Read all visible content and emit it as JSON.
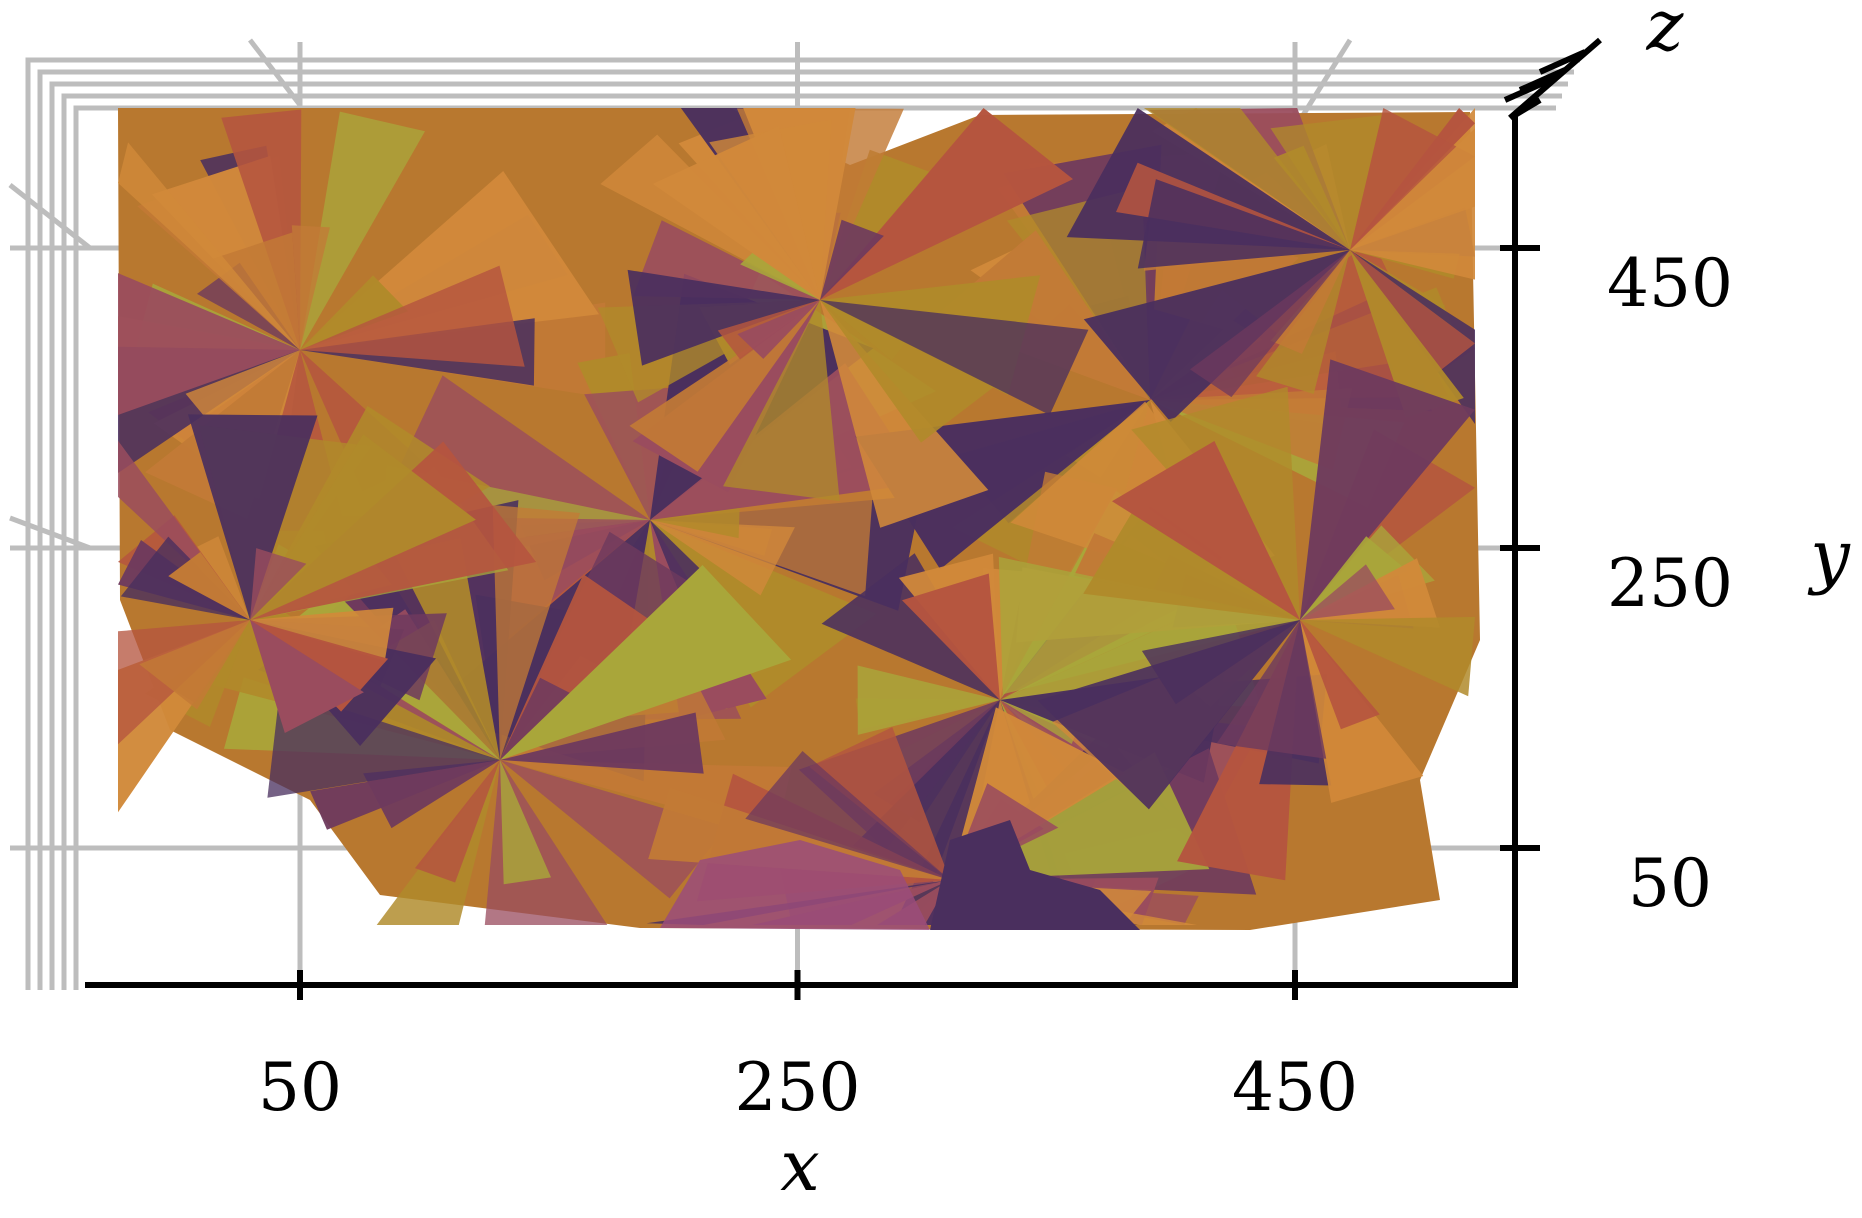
{
  "chart_data": {
    "type": "surface",
    "projection": "3d",
    "axes": {
      "x": {
        "label": "x",
        "ticks": [
          50,
          250,
          450
        ]
      },
      "y": {
        "label": "y",
        "ticks": [
          50,
          250,
          450
        ]
      },
      "z": {
        "label": "z",
        "ticks": []
      }
    },
    "grid": true,
    "colors": [
      "#b08a2a",
      "#c27a36",
      "#b5553f",
      "#9a4c5e",
      "#6e3a5e",
      "#4a2f5e",
      "#a9a63a",
      "#d1893a"
    ]
  }
}
